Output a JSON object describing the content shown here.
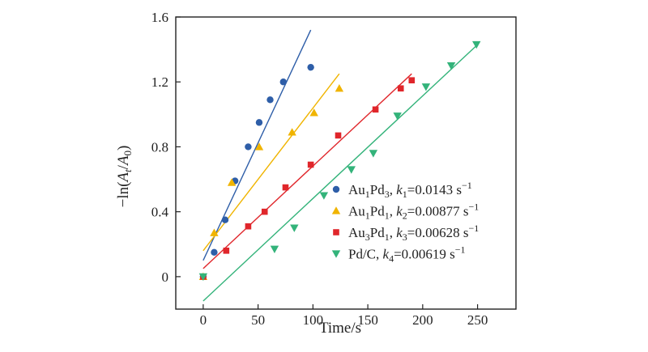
{
  "chart_data": {
    "type": "scatter",
    "title": "",
    "xlabel": "Time/s",
    "ylabel": "−ln(A_t/A_0)",
    "ylabel_parts": {
      "prefix": "−ln(",
      "a1": "A",
      "s1": "t",
      "slash": "/",
      "a2": "A",
      "s2": "0",
      "suffix": ")"
    },
    "xlim": [
      -25,
      285
    ],
    "ylim": [
      -0.2,
      1.6
    ],
    "xticks": [
      0,
      50,
      100,
      150,
      200,
      250
    ],
    "yticks": [
      0,
      0.4,
      0.8,
      1.2,
      1.6
    ],
    "ytick_labels": [
      "0",
      "0.4",
      "0.8",
      "1.2",
      "1.6"
    ],
    "grid": false,
    "legend_position": "lower-right",
    "series": [
      {
        "name": "Au1Pd3",
        "label_parts": [
          "Au",
          "1",
          "Pd",
          "3",
          ", ",
          "k",
          "1",
          "=0.0143 s",
          "−1"
        ],
        "k": 0.0143,
        "color": "#2E5EA8",
        "marker": "circle",
        "points": [
          [
            0,
            0.0
          ],
          [
            10,
            0.15
          ],
          [
            20,
            0.35
          ],
          [
            29,
            0.59
          ],
          [
            41,
            0.8
          ],
          [
            51,
            0.95
          ],
          [
            61,
            1.09
          ],
          [
            73,
            1.2
          ],
          [
            98,
            1.29
          ]
        ],
        "fit": [
          [
            0,
            0.1
          ],
          [
            98,
            1.52
          ]
        ]
      },
      {
        "name": "Au1Pd1",
        "label_parts": [
          "Au",
          "1",
          "Pd",
          "1",
          ", ",
          "k",
          "2",
          "=0.00877 s",
          "−1"
        ],
        "k": 0.00877,
        "color": "#F0B400",
        "marker": "triangle-up",
        "points": [
          [
            0,
            0.0
          ],
          [
            10,
            0.27
          ],
          [
            26,
            0.58
          ],
          [
            51,
            0.8
          ],
          [
            81,
            0.89
          ],
          [
            101,
            1.01
          ],
          [
            124,
            1.16
          ]
        ],
        "fit": [
          [
            0,
            0.16
          ],
          [
            124,
            1.25
          ]
        ]
      },
      {
        "name": "Au3Pd1",
        "label_parts": [
          "Au",
          "3",
          "Pd",
          "1",
          ", ",
          "k",
          "3",
          "=0.00628 s",
          "−1"
        ],
        "k": 0.00628,
        "color": "#E0262B",
        "marker": "square",
        "points": [
          [
            0,
            0.0
          ],
          [
            21,
            0.16
          ],
          [
            41,
            0.31
          ],
          [
            56,
            0.4
          ],
          [
            75,
            0.55
          ],
          [
            98,
            0.69
          ],
          [
            123,
            0.87
          ],
          [
            157,
            1.03
          ],
          [
            180,
            1.16
          ],
          [
            190,
            1.21
          ]
        ],
        "fit": [
          [
            0,
            0.05
          ],
          [
            190,
            1.25
          ]
        ]
      },
      {
        "name": "Pd/C",
        "label_parts": [
          "Pd/C, ",
          "k",
          "4",
          "=0.00619 s",
          "−1"
        ],
        "k": 0.00619,
        "color": "#33B37A",
        "marker": "triangle-down",
        "points": [
          [
            0,
            0.0
          ],
          [
            65,
            0.17
          ],
          [
            83,
            0.3
          ],
          [
            110,
            0.5
          ],
          [
            135,
            0.66
          ],
          [
            155,
            0.76
          ],
          [
            177,
            0.99
          ],
          [
            203,
            1.17
          ],
          [
            226,
            1.3
          ],
          [
            249,
            1.43
          ]
        ],
        "fit": [
          [
            0,
            -0.15
          ],
          [
            250,
            1.43
          ]
        ]
      }
    ]
  }
}
